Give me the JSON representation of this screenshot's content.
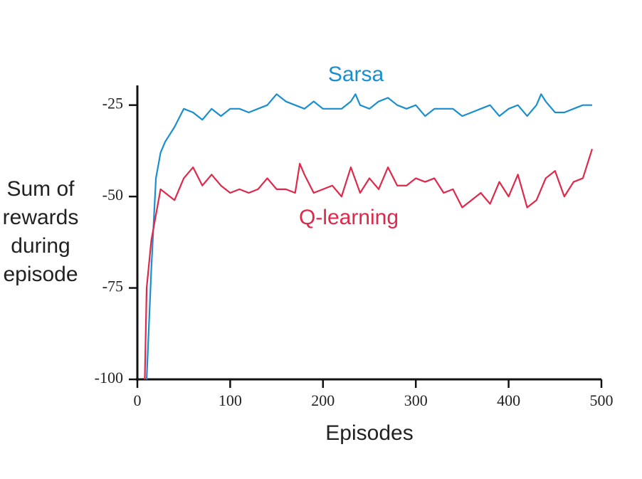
{
  "chart_data": {
    "type": "line",
    "x_label": "Episodes",
    "y_label": "Sum of\nrewards\nduring\nepisode",
    "xlim": [
      0,
      500
    ],
    "xticks": [
      0,
      100,
      200,
      300,
      400,
      500
    ],
    "ylim": [
      -100,
      -20
    ],
    "yticks": [
      -25,
      -50,
      -75,
      -100
    ],
    "series": [
      {
        "name": "Sarsa",
        "color": "#1a8fcf",
        "x": [
          10,
          15,
          20,
          25,
          30,
          40,
          50,
          60,
          70,
          80,
          90,
          100,
          110,
          120,
          130,
          140,
          150,
          160,
          170,
          180,
          190,
          200,
          210,
          220,
          230,
          235,
          240,
          250,
          260,
          270,
          280,
          290,
          300,
          310,
          320,
          330,
          340,
          350,
          360,
          370,
          380,
          390,
          400,
          410,
          420,
          430,
          435,
          440,
          450,
          460,
          470,
          480,
          490
        ],
        "values": [
          -100,
          -70,
          -45,
          -38,
          -35,
          -31,
          -26,
          -27,
          -29,
          -26,
          -28,
          -26,
          -26,
          -27,
          -26,
          -25,
          -22,
          -24,
          -25,
          -26,
          -24,
          -26,
          -26,
          -26,
          -24,
          -22,
          -25,
          -26,
          -24,
          -23,
          -25,
          -26,
          -25,
          -28,
          -26,
          -26,
          -26,
          -28,
          -27,
          -26,
          -25,
          -28,
          -26,
          -25,
          -28,
          -25,
          -22,
          -24,
          -27,
          -27,
          -26,
          -25,
          -25
        ]
      },
      {
        "name": "Q-learning",
        "color": "#e0284a",
        "x": [
          8,
          10,
          15,
          20,
          25,
          30,
          40,
          50,
          60,
          70,
          80,
          90,
          100,
          110,
          120,
          130,
          140,
          150,
          160,
          170,
          175,
          180,
          190,
          200,
          210,
          220,
          230,
          240,
          250,
          260,
          270,
          280,
          290,
          300,
          310,
          320,
          330,
          340,
          350,
          360,
          370,
          380,
          390,
          400,
          410,
          420,
          430,
          440,
          450,
          460,
          470,
          480,
          490
        ],
        "values": [
          -100,
          -75,
          -62,
          -55,
          -48,
          -49,
          -51,
          -45,
          -42,
          -47,
          -44,
          -47,
          -49,
          -48,
          -49,
          -48,
          -45,
          -48,
          -48,
          -49,
          -41,
          -44,
          -49,
          -48,
          -47,
          -50,
          -42,
          -49,
          -45,
          -48,
          -42,
          -47,
          -47,
          -45,
          -46,
          -45,
          -49,
          -48,
          -53,
          -51,
          -49,
          -52,
          -46,
          -50,
          -44,
          -53,
          -51,
          -45,
          -43,
          -50,
          -46,
          -45,
          -37
        ]
      }
    ]
  }
}
